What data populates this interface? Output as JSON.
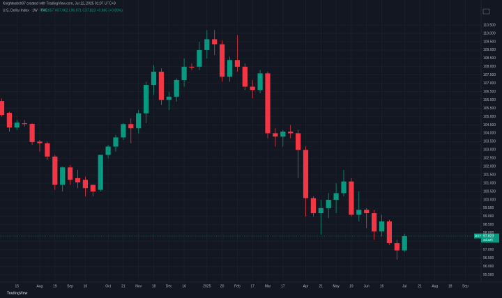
{
  "chart_data": {
    "type": "candlestick",
    "header": "Knightwatch97 created with TradingView.com, Jul 12, 2025 01:07 UTC+8",
    "title": "U.S. Dollar Index · 1W · TVC",
    "ohlc_legend": "O96.957 H97.962 L96.871 C97.823 +0.866 (+0.89%)",
    "symbol_tag": "DXY",
    "last_price": 97.823,
    "countdown": "2d 22h",
    "footer": "TradingView",
    "up_color": "#089981",
    "down_color": "#f23645",
    "grid": true,
    "categories": [
      null,
      null,
      "15",
      null,
      null,
      "Aug",
      null,
      "19",
      null,
      "Sep",
      null,
      "16",
      null,
      null,
      "Oct",
      null,
      "21",
      null,
      "Nov",
      null,
      "18",
      null,
      "Dec",
      null,
      "16",
      null,
      null,
      "2025",
      null,
      "20",
      null,
      "Feb",
      null,
      "17",
      null,
      "Mar",
      null,
      "17",
      null,
      null,
      "Apr",
      null,
      "21",
      null,
      "May",
      null,
      "19",
      null,
      "Jun",
      null,
      "16",
      null,
      null,
      "Jul",
      null,
      "21",
      null,
      "Aug",
      null,
      "18",
      null,
      "Sep"
    ],
    "open": [
      105.94,
      105.23,
      104.35,
      104.6,
      104.56,
      103.5,
      103.4,
      102.6,
      100.9,
      101.95,
      101.3,
      101.2,
      100.9,
      100.6,
      102.7,
      103.2,
      103.75,
      104.55,
      104.3,
      105.2,
      106.9,
      107.7,
      106.0,
      106.2,
      107.2,
      108.0,
      108.0,
      109.0,
      109.65,
      109.35,
      107.4,
      108.4,
      108.0,
      106.8,
      106.6,
      107.6,
      104.0,
      103.8,
      104.1,
      104.0,
      103.0,
      100.1,
      99.2,
      99.5,
      100.0,
      100.4,
      101.1,
      99.1,
      99.4,
      99.2,
      98.1,
      98.7,
      97.4,
      96.957,
      null,
      null,
      null,
      null,
      null,
      null,
      null,
      null
    ],
    "high": [
      106.1,
      105.3,
      104.8,
      104.8,
      104.6,
      103.6,
      103.5,
      102.7,
      102.0,
      102.1,
      101.8,
      101.4,
      100.9,
      102.7,
      103.3,
      103.9,
      104.6,
      104.9,
      105.4,
      107.1,
      108.1,
      107.9,
      106.5,
      107.3,
      108.5,
      108.2,
      109.5,
      110.2,
      110.2,
      109.6,
      108.6,
      109.9,
      108.2,
      107.2,
      107.8,
      107.7,
      104.3,
      104.2,
      104.5,
      104.2,
      103.2,
      100.2,
      100.0,
      100.4,
      101.0,
      101.8,
      101.3,
      100.5,
      99.5,
      99.4,
      99.1,
      98.8,
      97.6,
      97.962,
      null,
      null,
      null,
      null,
      null,
      null,
      null,
      null
    ],
    "low": [
      105.0,
      104.1,
      104.2,
      104.4,
      103.3,
      102.9,
      102.4,
      100.6,
      100.5,
      100.9,
      100.7,
      100.2,
      100.2,
      100.5,
      102.5,
      102.9,
      103.6,
      103.4,
      104.0,
      104.6,
      106.3,
      105.7,
      105.4,
      105.9,
      106.8,
      107.8,
      107.8,
      108.5,
      108.7,
      107.1,
      107.1,
      107.7,
      106.6,
      106.1,
      106.4,
      103.7,
      103.2,
      103.2,
      103.7,
      101.3,
      99.0,
      99.0,
      97.9,
      98.9,
      99.2,
      100.2,
      99.0,
      98.7,
      98.3,
      97.6,
      97.8,
      97.3,
      96.4,
      96.871,
      null,
      null,
      null,
      null,
      null,
      null,
      null,
      null
    ],
    "close": [
      105.1,
      104.35,
      104.64,
      104.55,
      103.47,
      103.4,
      102.6,
      100.9,
      101.95,
      101.2,
      101.05,
      100.7,
      100.5,
      102.7,
      103.2,
      103.75,
      104.55,
      104.3,
      105.2,
      106.9,
      107.7,
      106.0,
      106.2,
      107.2,
      108.0,
      107.95,
      109.0,
      109.65,
      109.35,
      107.4,
      108.4,
      108.0,
      106.8,
      106.6,
      107.6,
      104.0,
      103.8,
      104.1,
      104.0,
      103.0,
      100.1,
      99.2,
      99.5,
      100.0,
      100.4,
      101.1,
      99.1,
      99.4,
      99.2,
      98.1,
      98.7,
      97.4,
      96.957,
      97.823,
      null,
      null,
      null,
      null,
      null,
      null,
      null,
      null
    ],
    "ylim": [
      95.06,
      112.01
    ],
    "yticks": [
      {
        "value": 110.5,
        "label": "110.500"
      },
      {
        "value": 110,
        "label": "110.000"
      },
      {
        "value": 109.5,
        "label": "109.500"
      },
      {
        "value": 109,
        "label": "109.000"
      },
      {
        "value": 108.5,
        "label": "108.500"
      },
      {
        "value": 108,
        "label": "108.000"
      },
      {
        "value": 107.5,
        "label": "107.500"
      },
      {
        "value": 107,
        "label": "107.000"
      },
      {
        "value": 106.5,
        "label": "106.500"
      },
      {
        "value": 106,
        "label": "106.000"
      },
      {
        "value": 105.5,
        "label": "105.500"
      },
      {
        "value": 105,
        "label": "105.000"
      },
      {
        "value": 104.5,
        "label": "104.500"
      },
      {
        "value": 104,
        "label": "104.000"
      },
      {
        "value": 103.5,
        "label": "103.500"
      },
      {
        "value": 103,
        "label": "103.000"
      },
      {
        "value": 102.5,
        "label": "102.500"
      },
      {
        "value": 102,
        "label": "102.000"
      },
      {
        "value": 101.5,
        "label": "101.500"
      },
      {
        "value": 101,
        "label": "101.000"
      },
      {
        "value": 100.5,
        "label": "100.500"
      },
      {
        "value": 100,
        "label": "100.000"
      },
      {
        "value": 99.5,
        "label": "99.500"
      },
      {
        "value": 99,
        "label": "99.000"
      },
      {
        "value": 98.5,
        "label": "98.500"
      },
      {
        "value": 98,
        "label": "98.000"
      },
      {
        "value": 97.5,
        "label": "97.500"
      },
      {
        "value": 97,
        "label": "97.000"
      },
      {
        "value": 96.5,
        "label": "96.500"
      },
      {
        "value": 96,
        "label": "96.000"
      },
      {
        "value": 95.5,
        "label": "95.500"
      }
    ]
  }
}
